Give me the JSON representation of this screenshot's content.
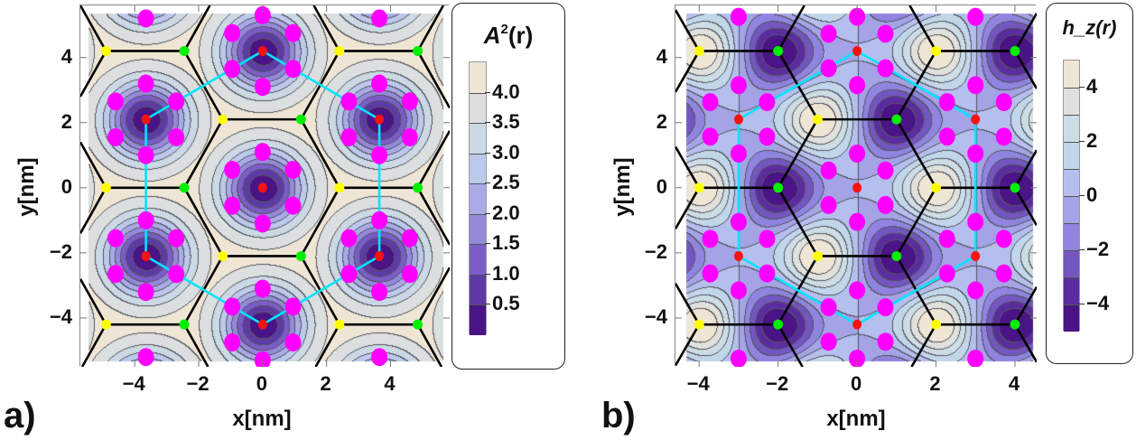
{
  "panels": [
    {
      "label": "a)",
      "xlabel": "x[nm]",
      "ylabel": "y[nm]",
      "legend": {
        "title_main": "A",
        "title_sup": "2",
        "title_rest": "(r)",
        "tick_labels": [
          "4.0",
          "3.5",
          "3.0",
          "2.5",
          "2.0",
          "1.5",
          "1.0",
          "0.5"
        ]
      }
    },
    {
      "label": "b)",
      "xlabel": "x[nm]",
      "ylabel": "y[nm]",
      "legend": {
        "title_main": "h",
        "title_sub": "z",
        "title_rest": "(r)",
        "tick_labels": [
          "4",
          "2",
          "0",
          "−2",
          "−4"
        ]
      }
    }
  ],
  "chart_data": [
    {
      "type": "heatmap",
      "title": "A²(r)",
      "xlabel": "x[nm]",
      "ylabel": "y[nm]",
      "xlim": [
        -5.7,
        5.85
      ],
      "ylim": [
        -5.5,
        5.6
      ],
      "xticks": [
        -4,
        -2,
        0,
        2,
        4
      ],
      "xtick_labels": [
        "−4",
        "−2",
        "0",
        "2",
        "4"
      ],
      "yticks": [
        -4,
        -2,
        0,
        2,
        4
      ],
      "ytick_labels": [
        "−4",
        "−2",
        "0",
        "2",
        "4"
      ],
      "levels": [
        0,
        0.5,
        1.0,
        1.5,
        2.0,
        2.5,
        3.0,
        3.5,
        4.0,
        4.5
      ],
      "colorbar_ticks": [
        4.0,
        3.5,
        3.0,
        2.5,
        2.0,
        1.5,
        1.0,
        0.5
      ],
      "colors": [
        "#4a1486",
        "#5e3aa6",
        "#7b5cc8",
        "#9589dc",
        "#a9aae6",
        "#bcc8ec",
        "#cbd9e4",
        "#dcdfe0",
        "#efe5d4"
      ],
      "red_lattice": {
        "origin": [
          0,
          0
        ],
        "a1": [
          3.65,
          2.1
        ],
        "a2": [
          0,
          4.2
        ]
      },
      "honeycomb": {
        "yellow_origin": [
          -4.9,
          0
        ],
        "a1": [
          3.65,
          2.1
        ],
        "a2": [
          0,
          4.2
        ],
        "bond": [
          2.45,
          0
        ],
        "diag": [
          -1.2,
          2.1
        ]
      },
      "magenta_offsets": [
        [
          0,
          1.1
        ],
        [
          0.95,
          0.55
        ],
        [
          0.95,
          -0.55
        ],
        [
          0,
          -1.1
        ],
        [
          -0.95,
          -0.55
        ],
        [
          -0.95,
          0.55
        ]
      ],
      "cyan_path": [
        [
          0,
          4.2
        ],
        [
          3.65,
          2.1
        ],
        [
          3.65,
          -2.1
        ],
        [
          0,
          -4.2
        ],
        [
          -3.65,
          -2.1
        ],
        [
          -3.65,
          2.1
        ]
      ],
      "marker_colors": {
        "red": "#ff1010",
        "yellow": "#ffff00",
        "green": "#00ee00",
        "magenta": "#ff00ff",
        "cyan": "#00e5ff",
        "bond": "#000000"
      }
    },
    {
      "type": "heatmap",
      "title": "h_z(r)",
      "xlabel": "x[nm]",
      "ylabel": "y[nm]",
      "xlim": [
        -4.6,
        4.55
      ],
      "ylim": [
        -5.5,
        5.6
      ],
      "xticks": [
        -4,
        -2,
        0,
        2,
        4
      ],
      "xtick_labels": [
        "−4",
        "−2",
        "0",
        "2",
        "4"
      ],
      "yticks": [
        -4,
        -2,
        0,
        2,
        4
      ],
      "ytick_labels": [
        "−4",
        "−2",
        "0",
        "2",
        "4"
      ],
      "levels": [
        -5,
        -4,
        -3,
        -2,
        -1,
        0,
        1,
        2,
        3,
        4,
        5
      ],
      "colorbar_ticks": [
        4,
        2,
        0,
        -2,
        -4
      ],
      "colors": [
        "#4a1486",
        "#5b2ca0",
        "#7356c0",
        "#8f84df",
        "#a3a3e6",
        "#b5bfed",
        "#c2d6ea",
        "#cddde5",
        "#e0e0dc",
        "#efe5d4"
      ],
      "red_lattice": {
        "origin": [
          0,
          0
        ],
        "a1": [
          3.0,
          2.1
        ],
        "a2": [
          0,
          4.2
        ]
      },
      "honeycomb": {
        "yellow_origin": [
          -4.0,
          0
        ],
        "a1": [
          3.0,
          2.1
        ],
        "a2": [
          0,
          4.2
        ],
        "bond": [
          2.0,
          0
        ],
        "diag": [
          -1.0,
          2.1
        ]
      },
      "magenta_offsets": [
        [
          0,
          1.05
        ],
        [
          0.72,
          0.53
        ],
        [
          0.72,
          -0.53
        ],
        [
          0,
          -1.05
        ],
        [
          -0.72,
          -0.53
        ],
        [
          -0.72,
          0.53
        ]
      ],
      "cyan_path": [
        [
          0,
          4.2
        ],
        [
          3.0,
          2.1
        ],
        [
          3.0,
          -2.1
        ],
        [
          0,
          -4.2
        ],
        [
          -3.0,
          -2.1
        ],
        [
          -3.0,
          2.1
        ]
      ],
      "marker_colors": {
        "red": "#ff1010",
        "yellow": "#ffff00",
        "green": "#00ee00",
        "magenta": "#ff00ff",
        "cyan": "#00e5ff",
        "bond": "#000000"
      }
    }
  ]
}
